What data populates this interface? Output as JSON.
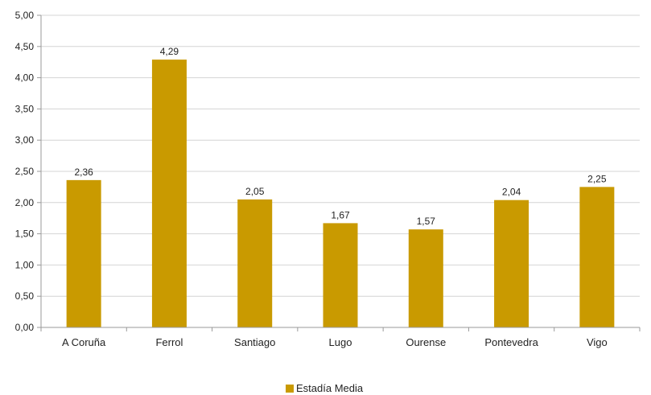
{
  "chart_data": {
    "type": "bar",
    "title": "",
    "xlabel": "",
    "ylabel": "",
    "categories": [
      "A Coruña",
      "Ferrol",
      "Santiago",
      "Lugo",
      "Ourense",
      "Pontevedra",
      "Vigo"
    ],
    "series": [
      {
        "name": "Estadía Media",
        "values": [
          2.36,
          4.29,
          2.05,
          1.67,
          1.57,
          2.04,
          2.25
        ],
        "value_labels": [
          "2,36",
          "4,29",
          "2,05",
          "1,67",
          "1,57",
          "2,04",
          "2,25"
        ],
        "color": "#C99A00"
      }
    ],
    "ylim": [
      0,
      5
    ],
    "yticks": [
      0,
      0.5,
      1,
      1.5,
      2,
      2.5,
      3,
      3.5,
      4,
      4.5,
      5
    ],
    "ytick_labels": [
      "0,00",
      "0,50",
      "1,00",
      "1,50",
      "2,00",
      "2,50",
      "3,00",
      "3,50",
      "4,00",
      "4,50",
      "5,00"
    ],
    "grid": true,
    "legend_position": "bottom",
    "gridline_color": "#d4d4d4",
    "axis_color": "#9a9a9a"
  }
}
